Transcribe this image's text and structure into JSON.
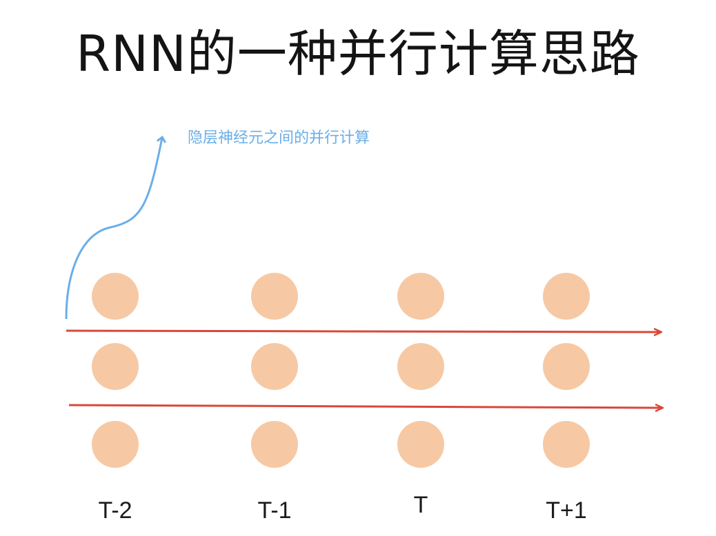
{
  "title": "RNN的一种并行计算思路",
  "annotation": "隐层神经元之间的并行计算",
  "time_steps": [
    "T-2",
    "T-1",
    "T",
    "T+1"
  ],
  "rows_per_step": 3,
  "colors": {
    "neuron": "#f6c9a4",
    "arrow": "#d9473a",
    "annotation": "#6aaee9",
    "text": "#141414"
  }
}
